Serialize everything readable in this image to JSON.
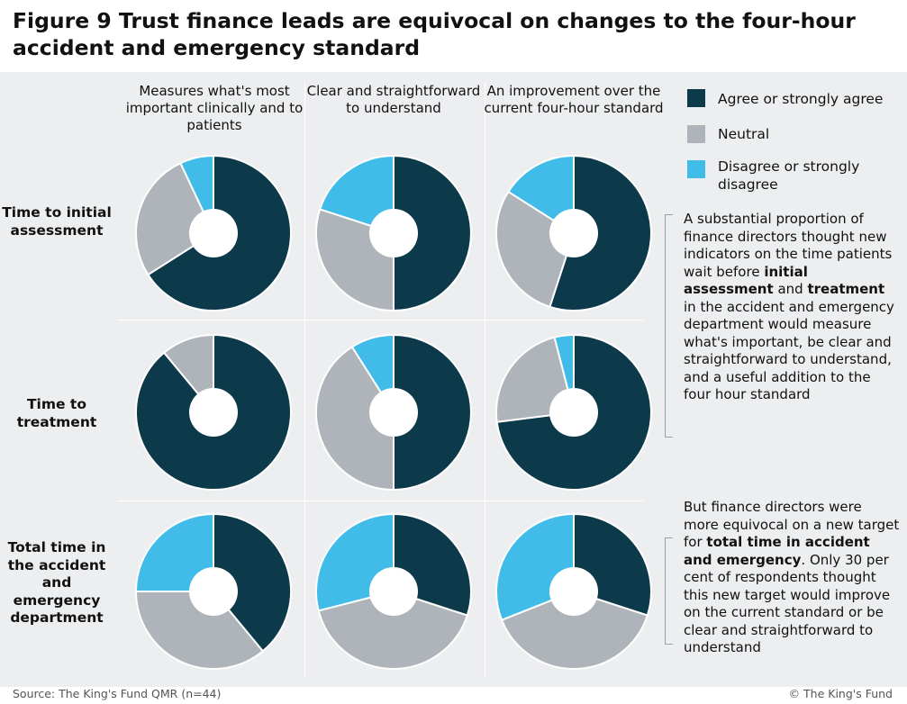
{
  "title": "Figure 9 Trust finance leads are equivocal on changes to the four-hour accident and emergency standard",
  "columns": [
    "Measures what's most important clinically and to patients",
    "Clear and straightforward to understand",
    "An improvement over the current four-hour standard"
  ],
  "rows": [
    "Time to initial assessment",
    "Time to treatment",
    "Total time in the accident and emergency department"
  ],
  "legend": [
    {
      "label": "Agree or strongly agree",
      "color": "#0d3a4a"
    },
    {
      "label": "Neutral",
      "color": "#aeb4b9"
    },
    {
      "label": "Disagree or strongly disagree",
      "color": "#41bbe8"
    }
  ],
  "note1": {
    "p1": "A substantial proportion of finance directors thought new indicators on the time patients wait before",
    "b1": "initial assessment",
    "p2": "and",
    "b2": "treatment",
    "p3": "in the accident and emergency department would measure what's important, be clear and straightforward to understand, and a useful addition to the four hour standard"
  },
  "note2": {
    "p1": "But finance directors were more equivocal on a new target for",
    "b1": "total time in accident and emergency",
    "p2": ". Only 30 per cent of respondents thought this new target would improve on the current standard or be clear and straightforward to understand"
  },
  "source": "Source: The King's Fund QMR (n=44)",
  "copyright": "© The King's Fund",
  "chart_data": {
    "type": "pie",
    "variant": "donut grid",
    "unit": "percent of respondents",
    "categories": [
      "Agree or strongly agree",
      "Neutral",
      "Disagree or strongly disagree"
    ],
    "charts": [
      {
        "row": "Time to initial assessment",
        "column": "Measures what's most important clinically and to patients",
        "values": [
          66,
          27,
          7
        ]
      },
      {
        "row": "Time to initial assessment",
        "column": "Clear and straightforward to understand",
        "values": [
          50,
          30,
          20
        ]
      },
      {
        "row": "Time to initial assessment",
        "column": "An improvement over the current four-hour standard",
        "values": [
          55,
          29,
          16
        ]
      },
      {
        "row": "Time to treatment",
        "column": "Measures what's most important clinically and to patients",
        "values": [
          89,
          11,
          0
        ]
      },
      {
        "row": "Time to treatment",
        "column": "Clear and straightforward to understand",
        "values": [
          50,
          41,
          9
        ]
      },
      {
        "row": "Time to treatment",
        "column": "An improvement over the current four-hour standard",
        "values": [
          73,
          23,
          4
        ]
      },
      {
        "row": "Total time in the accident and emergency department",
        "column": "Measures what's most important clinically and to patients",
        "values": [
          39,
          36,
          25
        ]
      },
      {
        "row": "Total time in the accident and emergency department",
        "column": "Clear and straightforward to understand",
        "values": [
          30,
          41,
          29
        ]
      },
      {
        "row": "Total time in the accident and emergency department",
        "column": "An improvement over the current four-hour standard",
        "values": [
          30,
          39,
          31
        ]
      }
    ]
  }
}
